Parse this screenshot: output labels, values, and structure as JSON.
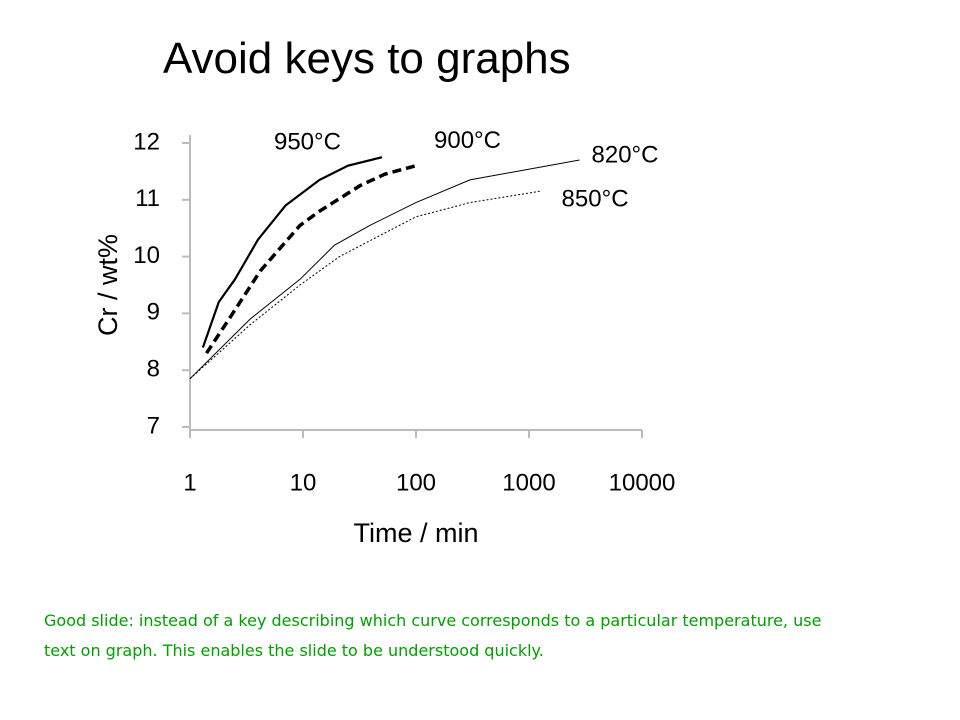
{
  "slide": {
    "title": "Avoid keys to graphs",
    "caption": "Good slide: instead of a key describing which curve corresponds to a particular temperature, use text on graph. This enables the slide to be understood quickly."
  },
  "chart_data": {
    "type": "line",
    "xlabel": "Time / min",
    "ylabel": "Cr / wt%",
    "xscale": "log",
    "xlim": [
      1,
      10000
    ],
    "xticks": [
      1,
      10,
      100,
      1000,
      10000
    ],
    "ylim": [
      7,
      12
    ],
    "yticks": [
      7,
      8,
      9,
      10,
      11,
      12
    ],
    "series": [
      {
        "name": "950°C",
        "color": "#000000",
        "line_style": "solid",
        "line_width": 2.2,
        "x": [
          1.3,
          1.8,
          2.5,
          4,
          7,
          14,
          25,
          50
        ],
        "values": [
          8.4,
          9.2,
          9.6,
          10.3,
          10.9,
          11.35,
          11.6,
          11.75
        ]
      },
      {
        "name": "900°C",
        "color": "#000000",
        "line_style": "dashed",
        "line_width": 3.5,
        "x": [
          1.4,
          2.3,
          4.2,
          9.4,
          14,
          32,
          53,
          100
        ],
        "values": [
          8.3,
          8.95,
          9.75,
          10.55,
          10.8,
          11.25,
          11.45,
          11.6
        ]
      },
      {
        "name": "820°C",
        "color": "#000000",
        "line_style": "solid",
        "line_width": 1,
        "x": [
          1,
          3.4,
          9.4,
          19,
          39,
          100,
          300,
          2800
        ],
        "values": [
          7.85,
          8.9,
          9.6,
          10.2,
          10.55,
          10.95,
          11.35,
          11.7
        ]
      },
      {
        "name": "850°C",
        "color": "#000000",
        "line_style": "dotted",
        "line_width": 1,
        "x": [
          1,
          3.4,
          9.4,
          21,
          100,
          300,
          1240
        ],
        "values": [
          7.85,
          8.8,
          9.5,
          10,
          10.7,
          10.95,
          11.15
        ]
      }
    ]
  }
}
